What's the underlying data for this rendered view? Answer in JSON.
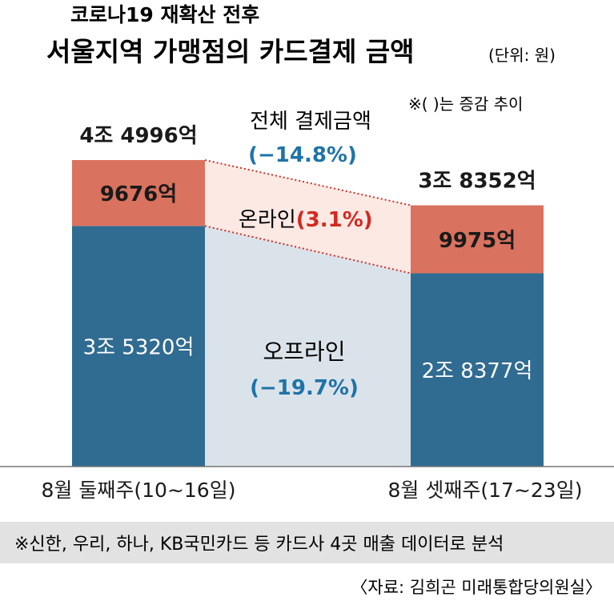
{
  "colors": {
    "offline": "#306b91",
    "online": "#d9725e",
    "online_band": "#fde9e3",
    "offline_band": "#dbe3ea",
    "accent_blue": "#1f73a8",
    "accent_red": "#d12a22",
    "note_bar": "#e2e2e2",
    "text": "#1a1a1a"
  },
  "header": {
    "title_line1": "코로나19 재확산 전후",
    "title_line2": "서울지역 가맹점의 카드결제 금액",
    "unit": "(단위: 원)",
    "change_note": "※(    )는 증감 추이"
  },
  "footer": {
    "note": "※신한, 우리, 하나, KB국민카드 등 카드사 4곳 매출 데이터로 분석",
    "source": "〈자료: 김희곤 미래통합당의원실〉"
  },
  "chart_data": {
    "type": "bar",
    "stacked": true,
    "title": "서울지역 가맹점의 카드결제 금액",
    "unit_label": "(단위: 원)",
    "categories": [
      "8월 둘째주(10~16일)",
      "8월 셋째주(17~23일)"
    ],
    "series": [
      {
        "name": "오프라인",
        "values": [
          35320,
          28377
        ],
        "labels": [
          "3조 5320억",
          "2조 8377억"
        ],
        "change": "(−19.7%)"
      },
      {
        "name": "온라인",
        "values": [
          9676,
          9975
        ],
        "labels": [
          "9676억",
          "9975억"
        ],
        "change": "(3.1%)"
      }
    ],
    "totals": {
      "name": "전체 결제금액",
      "values": [
        44996,
        38352
      ],
      "labels": [
        "4조 4996억",
        "3조 8352억"
      ],
      "change": "(−14.8%)"
    },
    "value_unit": "억 원",
    "ylim": [
      0,
      55000
    ]
  }
}
